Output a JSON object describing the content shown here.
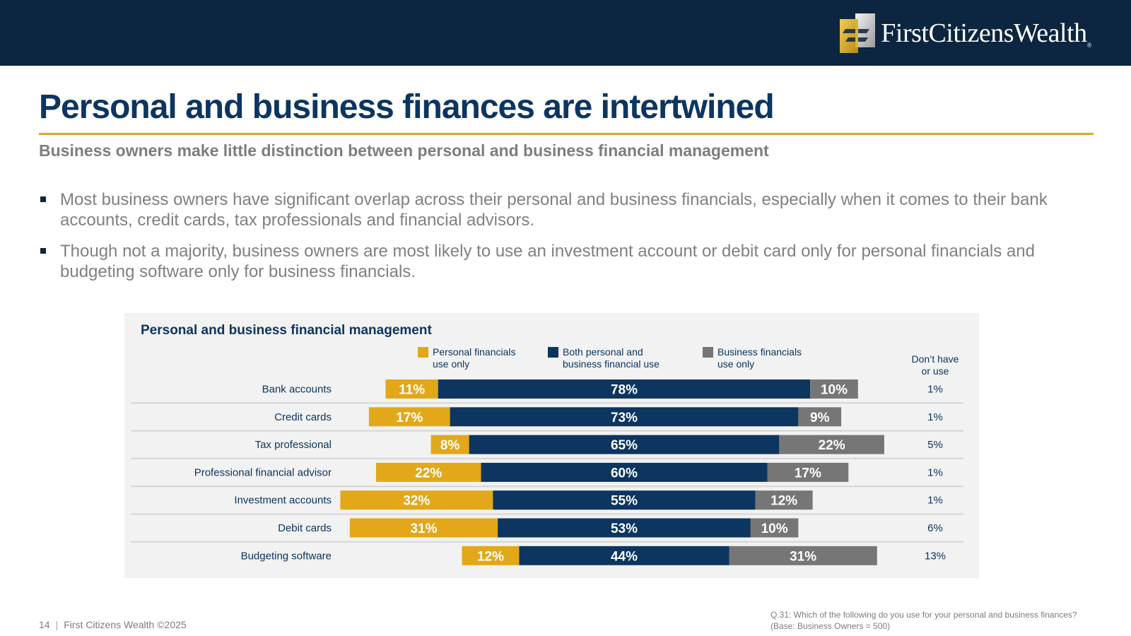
{
  "header": {
    "brand": "FirstCitizensWealth",
    "brand_mark": "®"
  },
  "page": {
    "title": "Personal and business finances are intertwined",
    "subtitle": "Business owners make little distinction between personal and business financial management",
    "bullets": [
      "Most business owners have significant overlap across their personal and business financials, especially when it comes to their bank accounts, credit cards, tax professionals and financial advisors.",
      "Though not a majority, business owners are most likely to use an investment account or debit card only for personal financials and budgeting software only for business financials."
    ]
  },
  "colors": {
    "navy": "#0c3560",
    "gold": "#e2a819",
    "gray": "#767676",
    "accent_rule": "#e0a819"
  },
  "chart_data": {
    "type": "bar",
    "orientation": "horizontal",
    "stacked": true,
    "title": "Personal and business financial management",
    "categories": [
      "Bank accounts",
      "Credit cards",
      "Tax professional",
      "Professional financial advisor",
      "Investment accounts",
      "Debit cards",
      "Budgeting software"
    ],
    "series": [
      {
        "name": "Personal financials use only",
        "values": [
          11,
          17,
          8,
          22,
          32,
          31,
          12
        ]
      },
      {
        "name": "Both personal and business financial use",
        "values": [
          78,
          73,
          65,
          60,
          55,
          53,
          44
        ]
      },
      {
        "name": "Business financials use only",
        "values": [
          10,
          9,
          22,
          17,
          12,
          10,
          31
        ]
      }
    ],
    "extra_column": {
      "header": "Don't have or use",
      "values": [
        1,
        1,
        5,
        1,
        1,
        6,
        13
      ]
    },
    "value_suffix": "%",
    "legend": [
      {
        "line1": "Personal financials",
        "line2": "use only"
      },
      {
        "line1": "Both personal and",
        "line2": "business financial use"
      },
      {
        "line1": "Business financials",
        "line2": "use only"
      }
    ],
    "dont_have": {
      "line1": "Don’t have",
      "line2": "or use"
    }
  },
  "footer": {
    "page_number": "14",
    "copyright": "First Citizens Wealth ©2025",
    "question": "Q.31:  Which of the following do you use for your personal and business finances?",
    "base": "(Base: Business Owners = 500)"
  }
}
